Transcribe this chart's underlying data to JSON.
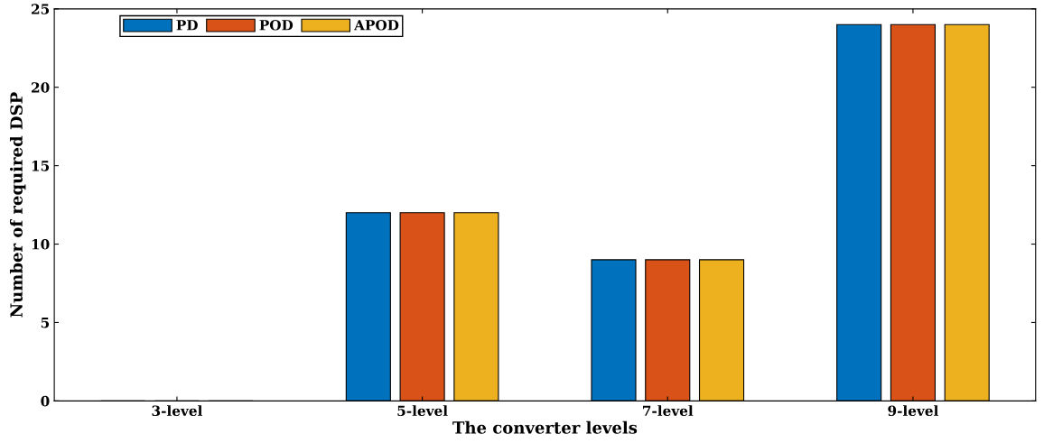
{
  "chart_data": {
    "type": "bar",
    "xlabel": "The converter levels",
    "ylabel": "Number of required DSP",
    "categories": [
      "3-level",
      "5-level",
      "7-level",
      "9-level"
    ],
    "series": [
      {
        "name": "PD",
        "color": "#0072bd",
        "values": [
          0,
          12,
          9,
          24
        ]
      },
      {
        "name": "POD",
        "color": "#d95319",
        "values": [
          0,
          12,
          9,
          24
        ]
      },
      {
        "name": "APOD",
        "color": "#edb120",
        "values": [
          0,
          12,
          9,
          24
        ]
      }
    ],
    "ylim": [
      0,
      25
    ],
    "yticks": [
      0,
      5,
      10,
      15,
      20,
      25
    ],
    "grid": false,
    "legend": "top left"
  }
}
